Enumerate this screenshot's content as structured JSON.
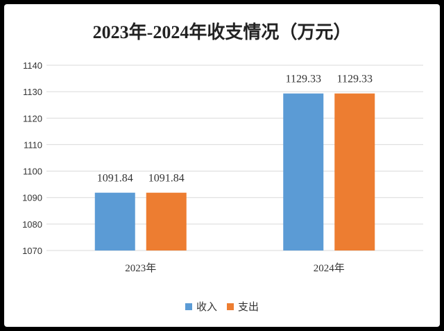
{
  "chart_data": {
    "type": "bar",
    "title": "2023年-2024年收支情况（万元）",
    "categories": [
      "2023年",
      "2024年"
    ],
    "series": [
      {
        "name": "收入",
        "values": [
          1091.84,
          1129.33
        ],
        "color": "#5B9BD5"
      },
      {
        "name": "支出",
        "values": [
          1091.84,
          1129.33
        ],
        "color": "#ED7D31"
      }
    ],
    "data_labels": [
      [
        "1091.84",
        "1129.33"
      ],
      [
        "1091.84",
        "1129.33"
      ]
    ],
    "ylim": [
      1070,
      1140
    ],
    "yticks": [
      1070,
      1080,
      1090,
      1100,
      1110,
      1120,
      1130,
      1140
    ],
    "xlabel": "",
    "ylabel": "",
    "grid": true,
    "legend_position": "bottom"
  }
}
